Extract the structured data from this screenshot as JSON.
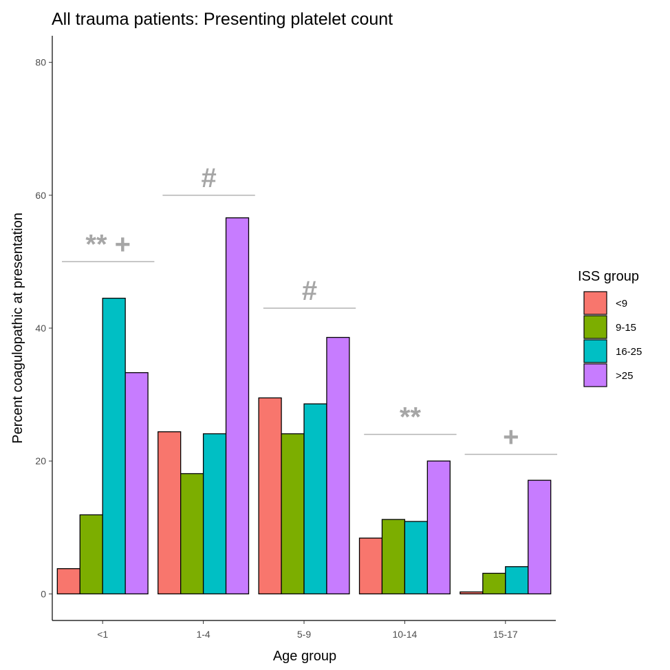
{
  "chart_data": {
    "type": "bar",
    "title": "All trauma patients: Presenting platelet count",
    "xlabel": "Age group",
    "ylabel": "Percent coagulopathic at presentation",
    "ylim": [
      -4,
      84
    ],
    "yticks": [
      0,
      20,
      40,
      60,
      80
    ],
    "grid": false,
    "categories": [
      "<1",
      "1-4",
      "5-9",
      "10-14",
      "15-17"
    ],
    "legend": {
      "title": "ISS group",
      "position": "right"
    },
    "series": [
      {
        "name": "<9",
        "color": "#F8766D",
        "values": [
          3.8,
          24.4,
          29.5,
          8.4,
          0.3
        ]
      },
      {
        "name": "9-15",
        "color": "#7CAE00",
        "values": [
          11.9,
          18.1,
          24.1,
          11.2,
          3.1
        ]
      },
      {
        "name": "16-25",
        "color": "#00BFC4",
        "values": [
          44.5,
          24.1,
          28.6,
          10.9,
          4.1
        ]
      },
      {
        "name": ">25",
        "color": "#C77CFF",
        "values": [
          33.3,
          56.6,
          38.6,
          20.0,
          17.1
        ]
      }
    ],
    "annotations": [
      {
        "category_index": 0,
        "line_y": 50,
        "label": "** +"
      },
      {
        "category_index": 1,
        "line_y": 60,
        "label": "#"
      },
      {
        "category_index": 2,
        "line_y": 43,
        "label": "#"
      },
      {
        "category_index": 3,
        "line_y": 24,
        "label": "**"
      },
      {
        "category_index": 4,
        "line_y": 21,
        "label": "+"
      }
    ],
    "annotation_color": "#a6a6a6"
  }
}
